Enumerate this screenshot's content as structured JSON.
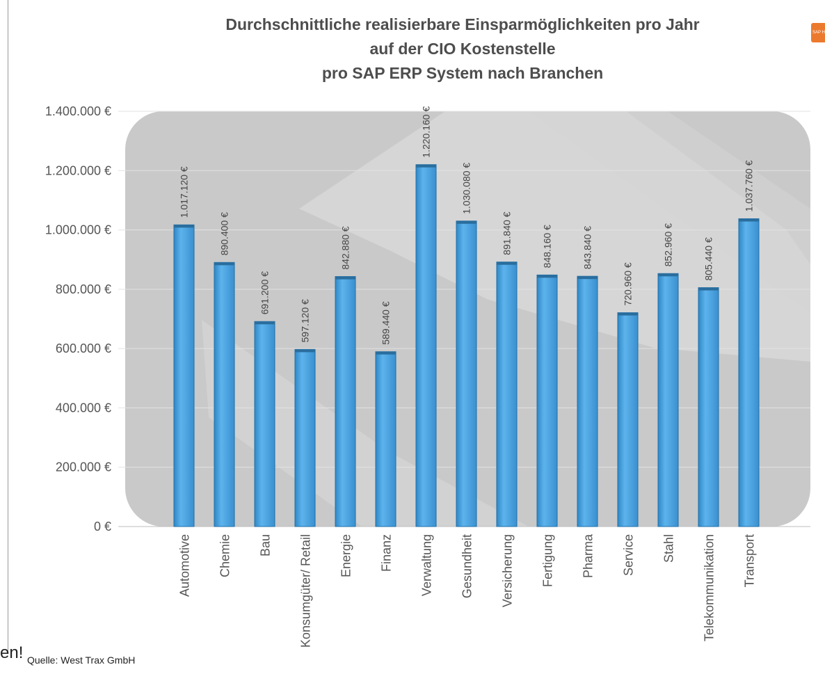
{
  "chart_data": {
    "type": "bar",
    "title_lines": [
      "Durchschnittliche realisierbare Einsparmöglichkeiten pro Jahr",
      "auf der CIO Kostenstelle",
      "pro SAP ERP System nach Branchen"
    ],
    "xlabel": "",
    "ylabel": "",
    "categories": [
      "Automotive",
      "Chemie",
      "Bau",
      "Konsumgüter/ Retail",
      "Energie",
      "Finanz",
      "Verwaltung",
      "Gesundheit",
      "Versicherung",
      "Fertigung",
      "Pharma",
      "Service",
      "Stahl",
      "Telekommunikation",
      "Transport"
    ],
    "values": [
      1017120,
      890400,
      691200,
      597120,
      842880,
      589440,
      1220160,
      1030080,
      891840,
      848160,
      843840,
      720960,
      852960,
      805440,
      1037760
    ],
    "data_labels": [
      "1.017.120 €",
      "890.400 €",
      "691.200 €",
      "597.120 €",
      "842.880 €",
      "589.440 €",
      "1.220.160 €",
      "1.030.080 €",
      "891.840 €",
      "848.160 €",
      "843.840 €",
      "720.960 €",
      "852.960 €",
      "805.440 €",
      "1.037.760 €"
    ],
    "ylim": [
      0,
      1400000
    ],
    "yticks": [
      0,
      200000,
      400000,
      600000,
      800000,
      1000000,
      1200000,
      1400000
    ],
    "ytick_labels": [
      "0 €",
      "200.000 €",
      "400.000 €",
      "600.000 €",
      "800.000 €",
      "1.000.000 €",
      "1.200.000 €",
      "1.400.000 €"
    ],
    "grid": true,
    "bar_color": "#4aa3e0"
  },
  "source_text": "Quelle: West Trax GmbH",
  "edge_text": "en!",
  "badge_text": "SAP H"
}
